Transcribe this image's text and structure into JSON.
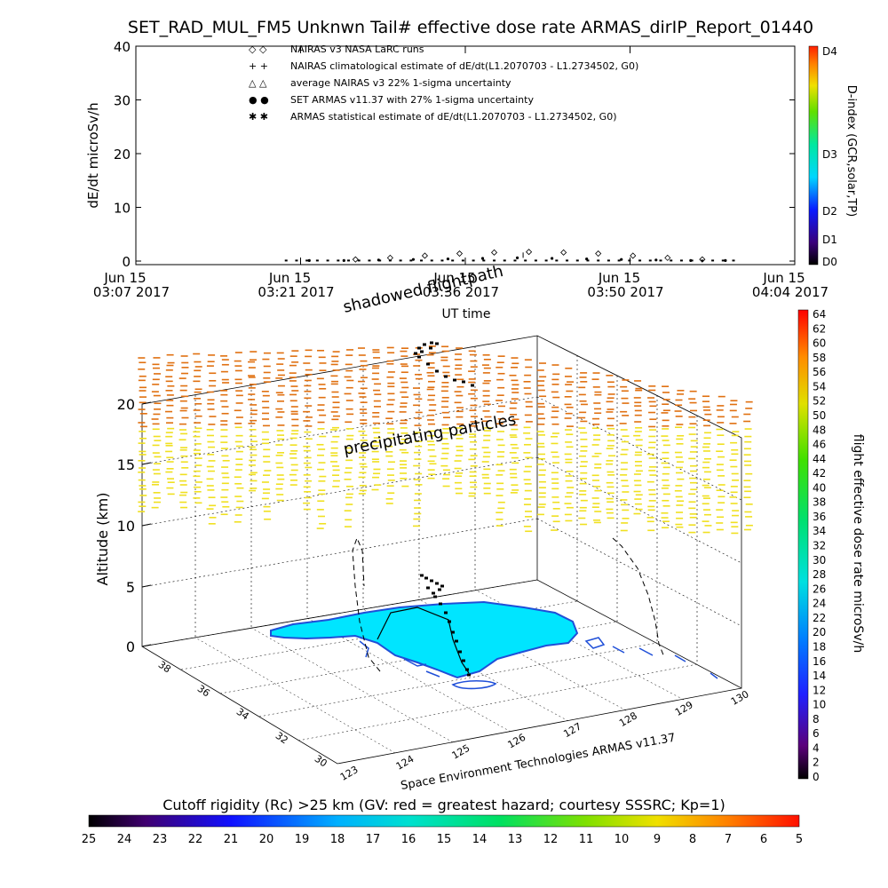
{
  "title": "SET_RAD_MUL_FM5 Unknwn Tail#  effective dose rate ARMAS_dirIP_Report_01440",
  "colors": {
    "sky_blue_land": "#00e5ff",
    "coast_blue": "#1f4fd8",
    "flight_path": "#000000",
    "shadow_path": "#000000",
    "upper_particles": "#e07010",
    "lower_particles": "#f0e020"
  },
  "chart_data": [
    {
      "type": "scatter",
      "panel": "top",
      "ylabel": "dE/dt microSv/h",
      "xlabel": "UT time",
      "ylim": [
        0,
        40
      ],
      "y_ticks": [
        "40",
        "30",
        "20",
        "10",
        "0"
      ],
      "x_tick_labels": [
        {
          "line1": "Jun 15",
          "line2": "03:07 2017"
        },
        {
          "line1": "Jun 15",
          "line2": "03:21 2017"
        },
        {
          "line1": "Jun 15",
          "line2": "03:36 2017"
        },
        {
          "line1": "Jun 15",
          "line2": "03:50 2017"
        },
        {
          "line1": "Jun 15",
          "line2": "04:04 2017"
        }
      ],
      "legend": [
        {
          "symbol": "◇ ◇",
          "label": "NAIRAS v3 NASA LaRC runs"
        },
        {
          "symbol": "+ +",
          "label": "NAIRAS climatological estimate of dE/dt(L1.2070703 - L1.2734502, G0)"
        },
        {
          "symbol": "△ △",
          "label": "average NAIRAS v3 22% 1-sigma uncertainty"
        },
        {
          "symbol": "● ●",
          "label": "SET ARMAS v11.37 with 27% 1-sigma uncertainty"
        },
        {
          "symbol": "✱ ✱",
          "label": "ARMAS statistical estimate of dE/dt(L1.2070703 - L1.2734502, G0)"
        }
      ],
      "series": [
        {
          "name": "NAIRAS v3 NASA LaRC runs",
          "x_minutes_after_0307": [
            19,
            22,
            25,
            28,
            31,
            34,
            37,
            40,
            43,
            46,
            49
          ],
          "values": [
            0.3,
            0.6,
            1.0,
            1.4,
            1.6,
            1.7,
            1.6,
            1.4,
            1.0,
            0.6,
            0.3
          ]
        },
        {
          "name": "SET ARMAS v11.37 with 27% 1-sigma uncertainty",
          "x_minutes_after_0307": [
            15,
            18,
            21,
            24,
            27,
            30,
            33,
            36,
            39,
            42,
            45,
            48,
            51
          ],
          "values": [
            0.1,
            0.1,
            0.2,
            0.3,
            0.4,
            0.5,
            0.6,
            0.5,
            0.4,
            0.3,
            0.2,
            0.1,
            0.1
          ]
        }
      ],
      "colorbar": {
        "title": "D-index (GCR,solar,TP)",
        "labels": [
          "D4",
          "D3",
          "D2",
          "D1",
          "D0"
        ]
      }
    },
    {
      "type": "scatter",
      "panel": "3d",
      "zlabel": "Altitude (km)",
      "z_ticks": [
        "0",
        "5",
        "10",
        "15",
        "20"
      ],
      "lat_ticks": [
        "30",
        "32",
        "34",
        "36",
        "38"
      ],
      "lon_ticks": [
        "123",
        "124",
        "125",
        "126",
        "127",
        "128",
        "129",
        "130"
      ],
      "annotations": [
        "shadowed flightpath",
        "precipitating particles"
      ],
      "footer": "Space Environment Technologies ARMAS v11.37",
      "colorbar": {
        "title": "flight effective dose rate microSv/h",
        "min": 0,
        "max": 64,
        "labels": [
          "64",
          "62",
          "60",
          "58",
          "56",
          "54",
          "52",
          "50",
          "48",
          "46",
          "44",
          "42",
          "40",
          "38",
          "36",
          "34",
          "32",
          "30",
          "28",
          "26",
          "24",
          "22",
          "20",
          "18",
          "16",
          "14",
          "12",
          "10",
          "8",
          "6",
          "4",
          "2",
          "0"
        ]
      }
    },
    {
      "type": "heatmap",
      "panel": "bottom-colorbar",
      "title": "Cutoff rigidity (Rc) >25 km (GV: red = greatest hazard; courtesy SSSRC; Kp=1)",
      "labels": [
        "25",
        "24",
        "23",
        "22",
        "21",
        "20",
        "19",
        "18",
        "17",
        "16",
        "15",
        "14",
        "13",
        "12",
        "11",
        "10",
        "9",
        "8",
        "7",
        "6",
        "5"
      ]
    }
  ]
}
